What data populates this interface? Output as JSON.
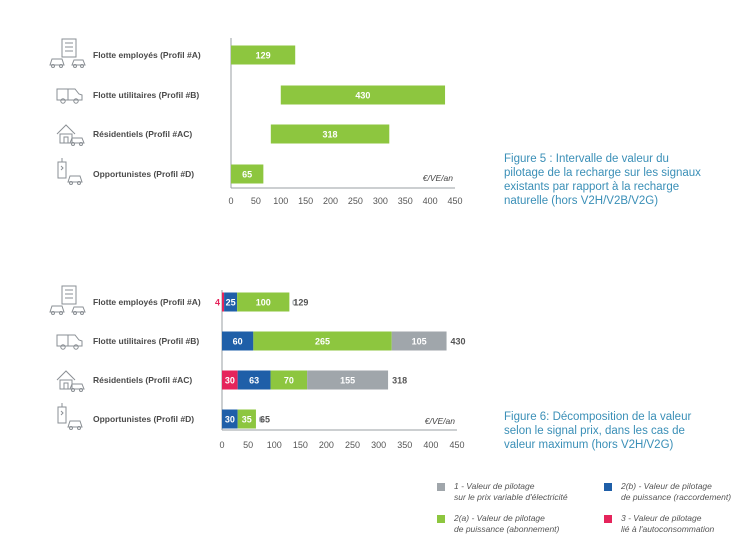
{
  "chart_data": [
    {
      "type": "bar",
      "orientation": "horizontal",
      "categories": [
        "Flotte employés (Profil #A)",
        "Flotte utilitaires (Profil #B)",
        "Résidentiels (Profil #AC)",
        "Opportunistes (Profil #D)"
      ],
      "icons": [
        "building-cars-icon",
        "van-icon",
        "house-car-icon",
        "charging-car-icon"
      ],
      "ranges": [
        {
          "start": 0,
          "end": 129,
          "label": "129"
        },
        {
          "start": 100,
          "end": 430,
          "label": "430"
        },
        {
          "start": 80,
          "end": 318,
          "label": "318"
        },
        {
          "start": 0,
          "end": 65,
          "label": "65"
        }
      ],
      "color": "#8dc63f",
      "xlim": [
        0,
        450
      ],
      "xticks": [
        "0",
        "50",
        "100",
        "150",
        "200",
        "250",
        "300",
        "350",
        "400",
        "450"
      ],
      "unit_label": "€/VE/an",
      "caption": [
        "Figure 5  : Intervalle de valeur du",
        "pilotage de la recharge sur les signaux",
        "existants par rapport à la recharge",
        "naturelle (hors V2H/V2B/V2G)"
      ]
    },
    {
      "type": "bar",
      "orientation": "horizontal",
      "stacked": true,
      "categories": [
        "Flotte employés (Profil #A)",
        "Flotte utilitaires (Profil #B)",
        "Résidentiels (Profil #AC)",
        "Opportunistes (Profil #D)"
      ],
      "icons": [
        "building-cars-icon",
        "van-icon",
        "house-car-icon",
        "charging-car-icon"
      ],
      "series": [
        {
          "key": "autoconso",
          "values": [
            4,
            0,
            30,
            0
          ],
          "color": "#e5245b"
        },
        {
          "key": "raccordement",
          "values": [
            25,
            60,
            63,
            30
          ],
          "color": "#1f5fa8"
        },
        {
          "key": "abonnement",
          "values": [
            100,
            265,
            70,
            35
          ],
          "color": "#8dc63f"
        },
        {
          "key": "prix_variable",
          "values": [
            0,
            105,
            155,
            0
          ],
          "color": "#a0a6ab"
        }
      ],
      "totals": [
        "129",
        "430",
        "318",
        "65"
      ],
      "xlim": [
        0,
        450
      ],
      "xticks": [
        "0",
        "50",
        "100",
        "150",
        "200",
        "250",
        "300",
        "350",
        "400",
        "450"
      ],
      "unit_label": "€/VE/an",
      "caption": [
        "Figure 6: Décomposition de la valeur",
        "selon le signal prix, dans les cas de",
        "valeur maximum (hors V2H/V2G)"
      ]
    }
  ],
  "legend": [
    {
      "color": "#a0a6ab",
      "line1": "1 - Valeur de pilotage",
      "line2": "sur le prix variable d'électricité"
    },
    {
      "color": "#1f5fa8",
      "line1": "2(b) - Valeur de pilotage",
      "line2": "de puissance (raccordement)"
    },
    {
      "color": "#8dc63f",
      "line1": "2(a) - Valeur de pilotage",
      "line2": "de puissance (abonnement)"
    },
    {
      "color": "#e5245b",
      "line1": "3 - Valeur de pilotage",
      "line2": "lié à l'autoconsommation"
    }
  ]
}
